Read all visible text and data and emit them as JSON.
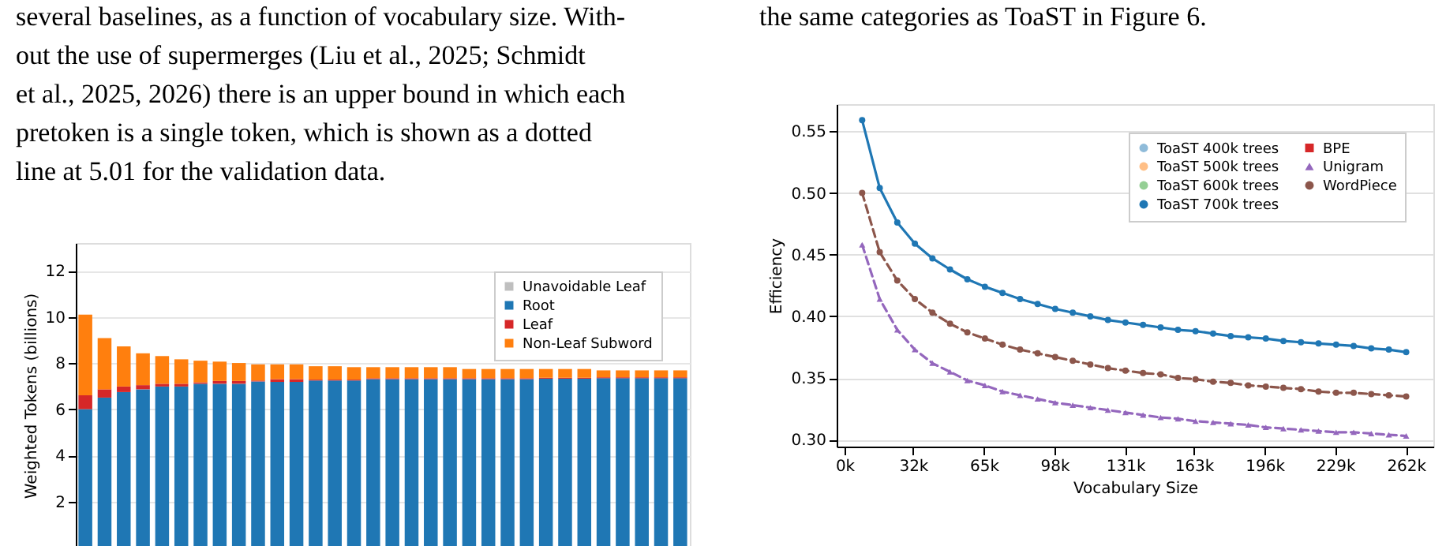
{
  "chart_data": [
    {
      "type": "bar",
      "stacked": true,
      "ylabel": "Weighted Tokens (billions)",
      "ylim": [
        0,
        13.2
      ],
      "yticks": [
        2,
        4,
        6,
        8,
        10,
        12
      ],
      "grid": "y",
      "legend": "top right",
      "tick_labels": "y",
      "annotations": [
        "several baselines, as a function of vocabulary size. With-",
        "out the use of supermerges (Liu et al., 2025; Schmidt",
        "et al., 2025, 2026) there is an upper bound in which each",
        "pretoken is a single token, which is shown as a dotted",
        "line at 5.01 for the validation data."
      ],
      "categories": [
        null,
        null,
        null,
        null,
        null,
        null,
        null,
        null,
        null,
        null,
        null,
        null,
        null,
        null,
        null,
        null,
        null,
        null,
        null,
        null,
        null,
        null,
        null,
        null,
        null,
        null,
        null,
        null,
        null,
        null,
        null,
        null
      ],
      "series": [
        {
          "name": "Unavoidable Leaf",
          "color": "#bfbfbf",
          "values": [
            null,
            null,
            null,
            null,
            null,
            null,
            null,
            null,
            null,
            null,
            null,
            null,
            null,
            null,
            null,
            null,
            null,
            null,
            null,
            null,
            null,
            null,
            null,
            null,
            null,
            null,
            null,
            null,
            null,
            null,
            null,
            null
          ]
        },
        {
          "name": "Root",
          "color": "#1f77b4",
          "values": [
            6.0,
            6.5,
            6.74,
            6.86,
            6.98,
            6.98,
            7.1,
            7.1,
            7.1,
            7.2,
            7.18,
            7.18,
            7.24,
            7.24,
            7.24,
            7.3,
            7.3,
            7.3,
            7.3,
            7.3,
            7.3,
            7.3,
            7.3,
            7.3,
            7.32,
            7.32,
            7.32,
            7.34,
            7.34,
            7.34,
            7.34,
            7.34
          ]
        },
        {
          "name": "Leaf",
          "color": "#d62728",
          "values": [
            0.6,
            0.36,
            0.24,
            0.18,
            0.12,
            0.12,
            0.06,
            0.12,
            0.12,
            0.04,
            0.12,
            0.12,
            0.04,
            0.04,
            0.04,
            0.04,
            0.04,
            0.04,
            0.04,
            0.04,
            0.04,
            0.04,
            0.04,
            0.04,
            0.04,
            0.04,
            0.04,
            0.04,
            0.04,
            0.04,
            0.04,
            0.04
          ]
        },
        {
          "name": "Non-Leaf Subword",
          "color": "#ff7f0e",
          "values": [
            3.5,
            2.22,
            1.74,
            1.38,
            1.2,
            1.06,
            0.94,
            0.84,
            0.78,
            0.7,
            0.64,
            0.64,
            0.58,
            0.58,
            0.54,
            0.48,
            0.48,
            0.48,
            0.48,
            0.48,
            0.4,
            0.4,
            0.4,
            0.4,
            0.38,
            0.38,
            0.38,
            0.3,
            0.3,
            0.3,
            0.3,
            0.3
          ]
        }
      ]
    },
    {
      "type": "line",
      "xlabel": "Vocabulary Size",
      "ylabel": "Efficiency",
      "xlim": [
        -3.7,
        274.8
      ],
      "ylim": [
        0.2944,
        0.572
      ],
      "xticks": [
        {
          "value": 0,
          "label": "0k"
        },
        {
          "value": 32,
          "label": "32k"
        },
        {
          "value": 65,
          "label": "65k"
        },
        {
          "value": 98,
          "label": "98k"
        },
        {
          "value": 131,
          "label": "131k"
        },
        {
          "value": 163,
          "label": "163k"
        },
        {
          "value": 196,
          "label": "196k"
        },
        {
          "value": 229,
          "label": "229k"
        },
        {
          "value": 262,
          "label": "262k"
        }
      ],
      "yticks": [
        {
          "value": 0.3,
          "label": "0.30"
        },
        {
          "value": 0.35,
          "label": "0.35"
        },
        {
          "value": 0.4,
          "label": "0.40"
        },
        {
          "value": 0.45,
          "label": "0.45"
        },
        {
          "value": 0.5,
          "label": "0.50"
        },
        {
          "value": 0.55,
          "label": "0.55"
        }
      ],
      "grid": "y",
      "legend": "top right",
      "annotations": [
        "the same categories as ToaST in Figure 6."
      ],
      "x": [
        8.2,
        16.4,
        24.6,
        32.8,
        41.0,
        49.2,
        57.3,
        65.5,
        73.7,
        81.9,
        90.1,
        98.3,
        106.5,
        114.7,
        122.9,
        131.1,
        139.3,
        147.5,
        155.6,
        163.8,
        172.0,
        180.2,
        188.4,
        196.6,
        204.8,
        213.0,
        221.2,
        229.4,
        237.6,
        245.8,
        254.0,
        262.1
      ],
      "series": [
        {
          "name": "ToaST 400k trees",
          "color": "#8fbbd9",
          "marker": "circle",
          "line_style": "solid",
          "values": [
            null,
            null,
            null,
            null,
            null,
            null,
            null,
            null,
            null,
            null,
            null,
            null,
            null,
            null,
            null,
            null,
            null,
            null,
            null,
            null,
            null,
            null,
            null,
            null,
            null,
            null,
            null,
            null,
            null,
            null,
            null,
            null
          ]
        },
        {
          "name": "ToaST 500k trees",
          "color": "#ffbf86",
          "marker": "circle",
          "line_style": "solid",
          "values": [
            null,
            null,
            null,
            null,
            null,
            null,
            null,
            null,
            null,
            null,
            null,
            null,
            null,
            null,
            null,
            null,
            null,
            null,
            null,
            null,
            null,
            null,
            null,
            null,
            null,
            null,
            null,
            null,
            null,
            null,
            null,
            null
          ]
        },
        {
          "name": "ToaST 600k trees",
          "color": "#95cf95",
          "marker": "circle",
          "line_style": "solid",
          "values": [
            null,
            null,
            null,
            null,
            null,
            null,
            null,
            null,
            null,
            null,
            null,
            null,
            null,
            null,
            null,
            null,
            null,
            null,
            null,
            null,
            null,
            null,
            null,
            null,
            null,
            null,
            null,
            null,
            null,
            null,
            null,
            null
          ]
        },
        {
          "name": "ToaST 700k trees",
          "color": "#1f77b4",
          "marker": "circle",
          "line_style": "solid",
          "values": [
            0.559,
            0.504,
            0.476,
            0.459,
            0.447,
            0.438,
            0.43,
            0.424,
            0.419,
            0.414,
            0.41,
            0.406,
            0.403,
            0.4,
            0.397,
            0.395,
            0.393,
            0.391,
            0.389,
            0.388,
            0.386,
            0.384,
            0.383,
            0.382,
            0.38,
            0.379,
            0.378,
            0.377,
            0.376,
            0.374,
            0.373,
            0.371
          ]
        },
        {
          "name": "BPE",
          "color": "#d62728",
          "marker": "square",
          "line_style": "dashed",
          "values": [
            null,
            null,
            null,
            null,
            null,
            null,
            null,
            null,
            null,
            null,
            null,
            null,
            null,
            null,
            null,
            null,
            null,
            null,
            null,
            null,
            null,
            null,
            null,
            null,
            null,
            null,
            null,
            null,
            null,
            null,
            null,
            null
          ]
        },
        {
          "name": "Unigram",
          "color": "#9467bd",
          "marker": "triangle",
          "line_style": "dashed",
          "values": [
            0.458,
            0.414,
            0.389,
            0.373,
            0.362,
            0.355,
            0.348,
            0.344,
            0.339,
            0.336,
            0.333,
            0.33,
            0.328,
            0.326,
            0.324,
            0.322,
            0.32,
            0.318,
            0.317,
            0.315,
            0.314,
            0.313,
            0.312,
            0.31,
            0.309,
            0.308,
            0.307,
            0.306,
            0.306,
            0.305,
            0.304,
            0.303
          ]
        },
        {
          "name": "WordPiece",
          "color": "#8c564b",
          "marker": "circle",
          "line_style": "dashed",
          "values": [
            0.5,
            0.452,
            0.429,
            0.414,
            0.403,
            0.394,
            0.387,
            0.382,
            0.377,
            0.373,
            0.37,
            0.367,
            0.364,
            0.361,
            0.358,
            0.356,
            0.354,
            0.353,
            0.35,
            0.349,
            0.347,
            0.346,
            0.344,
            0.343,
            0.342,
            0.341,
            0.339,
            0.338,
            0.338,
            0.337,
            0.336,
            0.335
          ]
        }
      ]
    }
  ]
}
